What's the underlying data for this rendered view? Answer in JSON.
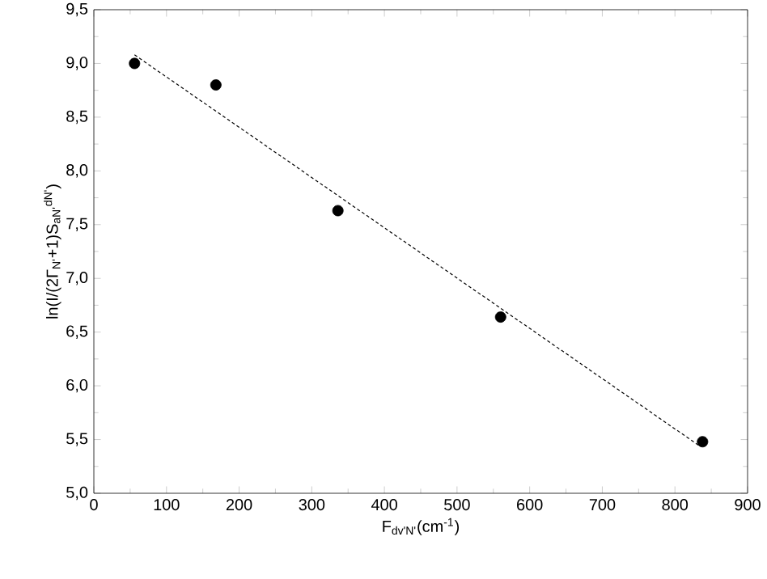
{
  "chart_data": {
    "type": "scatter",
    "xlabel": "F$_{dv'N'}$(cm$^{-1}$)",
    "ylabel": "ln(I/(2Γ$_{N'}$+1)S$_{aN'}$$^{dN'}$)",
    "xlim": [
      0,
      900
    ],
    "ylim": [
      5.0,
      9.5
    ],
    "xticks": [
      0,
      100,
      200,
      300,
      400,
      500,
      600,
      700,
      800,
      900
    ],
    "yticks": [
      {
        "value": 5.0,
        "label": "5,0"
      },
      {
        "value": 5.5,
        "label": "5,5"
      },
      {
        "value": 6.0,
        "label": "6,0"
      },
      {
        "value": 6.5,
        "label": "6,5"
      },
      {
        "value": 7.0,
        "label": "7,0"
      },
      {
        "value": 7.5,
        "label": "7,5"
      },
      {
        "value": 8.0,
        "label": "8,0"
      },
      {
        "value": 8.5,
        "label": "8,5"
      },
      {
        "value": 9.0,
        "label": "9,0"
      },
      {
        "value": 9.5,
        "label": "9,5"
      }
    ],
    "grid": false,
    "series": [
      {
        "color": "#000000",
        "marker": "circle",
        "x": [
          56,
          168,
          336,
          560,
          838
        ],
        "values": [
          9.0,
          8.8,
          7.63,
          6.64,
          5.48
        ]
      },
      {
        "type": "line",
        "color": "#000000",
        "marker": "none",
        "line_style": "dashed",
        "x": [
          56,
          834
        ],
        "values": [
          9.08,
          5.44
        ]
      }
    ]
  }
}
